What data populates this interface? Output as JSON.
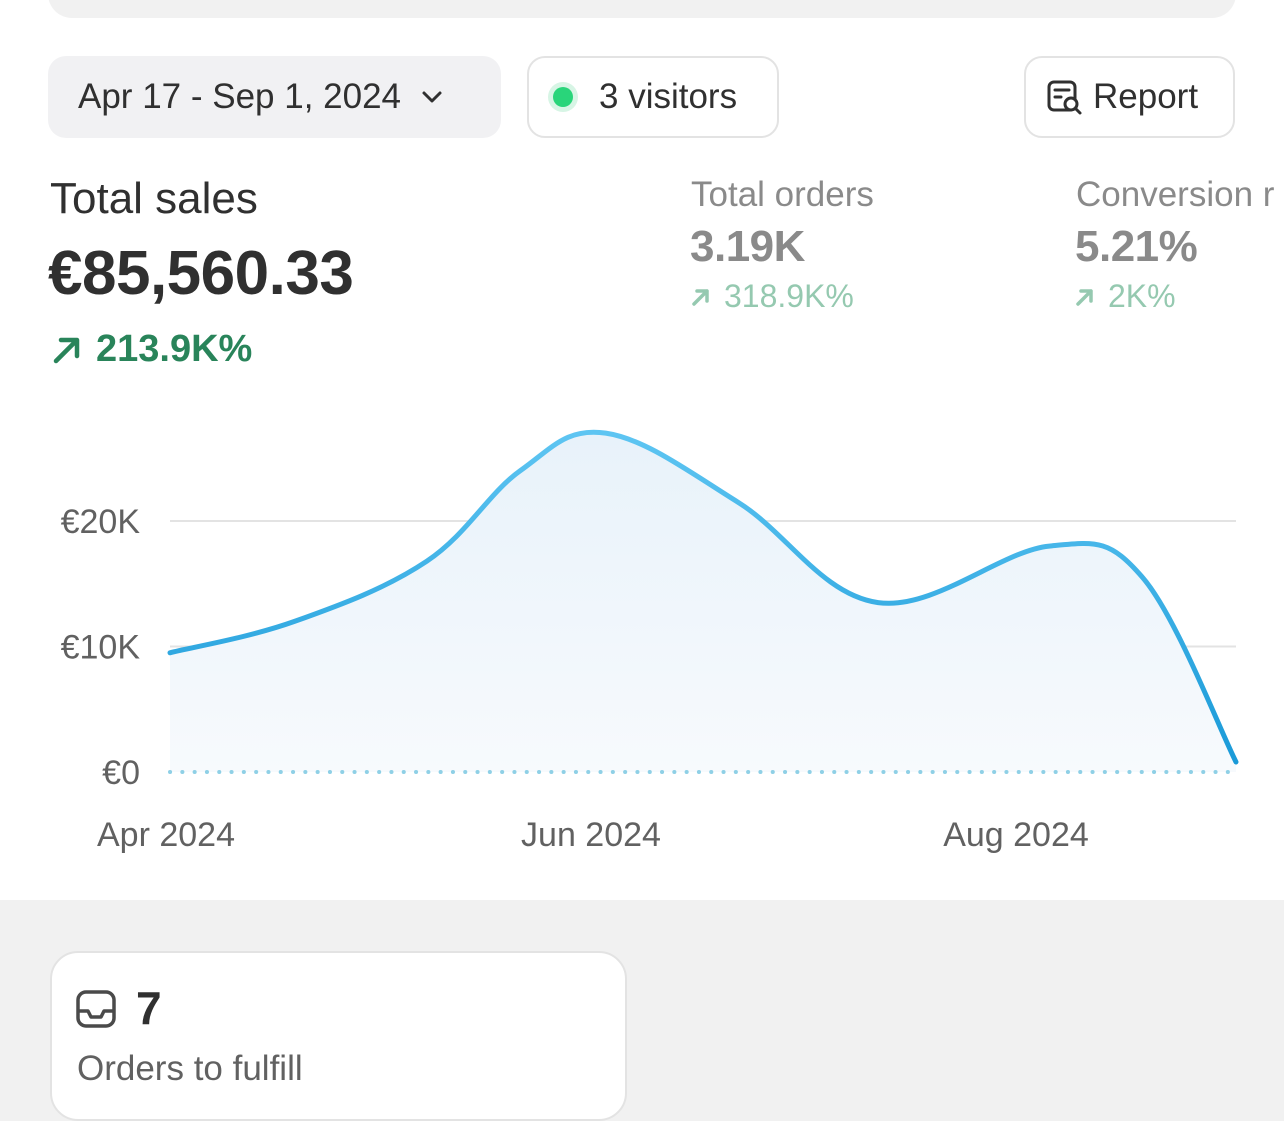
{
  "toolbar": {
    "date_range": "Apr 17 - Sep 1, 2024",
    "visitors": "3 visitors",
    "report": "Report"
  },
  "metrics": {
    "total_sales": {
      "label": "Total sales",
      "value": "€85,560.33",
      "change": "213.9K%"
    },
    "total_orders": {
      "label": "Total orders",
      "value": "3.19K",
      "change": "318.9K%"
    },
    "conversion": {
      "label": "Conversion r",
      "value": "5.21%",
      "change": "2K%"
    }
  },
  "chart_data": {
    "type": "area",
    "x": [
      "2024-04-17",
      "2024-05-03",
      "2024-05-20",
      "2024-06-01",
      "2024-06-12",
      "2024-06-29",
      "2024-07-17",
      "2024-08-08",
      "2024-08-20",
      "2024-09-01"
    ],
    "values": [
      9500,
      12000,
      16800,
      24000,
      27000,
      21500,
      13500,
      18000,
      15500,
      800
    ],
    "ylim": [
      0,
      28500
    ],
    "y_ticks": [
      "€0",
      "€10K",
      "€20K"
    ],
    "x_ticks": [
      "Apr 2024",
      "Jun 2024",
      "Aug 2024"
    ],
    "grid": true,
    "line_color": "#1fa3e0",
    "fill_color": "#eef5fb",
    "baseline_color": "#8fd0e6"
  },
  "fulfill": {
    "count": "7",
    "label": "Orders to fulfill"
  },
  "colors": {
    "positive": "#29845a",
    "live_dot": "#29d57a"
  }
}
